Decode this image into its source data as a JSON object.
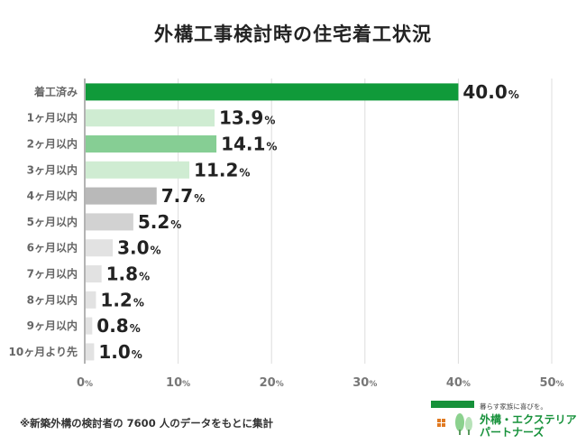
{
  "title": "外構工事検討時の住宅着工状況",
  "chart_data": {
    "type": "bar",
    "orientation": "horizontal",
    "title": "外構工事検討時の住宅着工状況",
    "categories": [
      "着工済み",
      "1ヶ月以内",
      "2ヶ月以内",
      "3ヶ月以内",
      "4ヶ月以内",
      "5ヶ月以内",
      "6ヶ月以内",
      "7ヶ月以内",
      "8ヶ月以内",
      "9ヶ月以内",
      "10ヶ月より先"
    ],
    "values": [
      40.0,
      13.9,
      14.1,
      11.2,
      7.7,
      5.2,
      3.0,
      1.8,
      1.2,
      0.8,
      1.0
    ],
    "value_labels": [
      "40.0",
      "13.9",
      "14.1",
      "11.2",
      "7.7",
      "5.2",
      "3.0",
      "1.8",
      "1.2",
      "0.8",
      "1.0"
    ],
    "value_unit": "%",
    "bar_colors": [
      "#109a3a",
      "#cfecd2",
      "#86ce94",
      "#cfecd2",
      "#b9b9b9",
      "#d2d2d2",
      "#e2e2e2",
      "#e2e2e2",
      "#e2e2e2",
      "#e2e2e2",
      "#e2e2e2"
    ],
    "xlim": [
      0,
      50
    ],
    "xticks": [
      "0",
      "10",
      "20",
      "30",
      "40",
      "50"
    ],
    "tick_unit": "%",
    "grid": true
  },
  "footnote": "※新築外構の検討者の 7600 人のデータをもとに集計",
  "brand": {
    "tagline": "暮らす家族に喜びを。",
    "line1": "外構・エクステリア",
    "line2": "パートナーズ",
    "color": "#16913a",
    "icon": "house-trees-logo-icon"
  }
}
